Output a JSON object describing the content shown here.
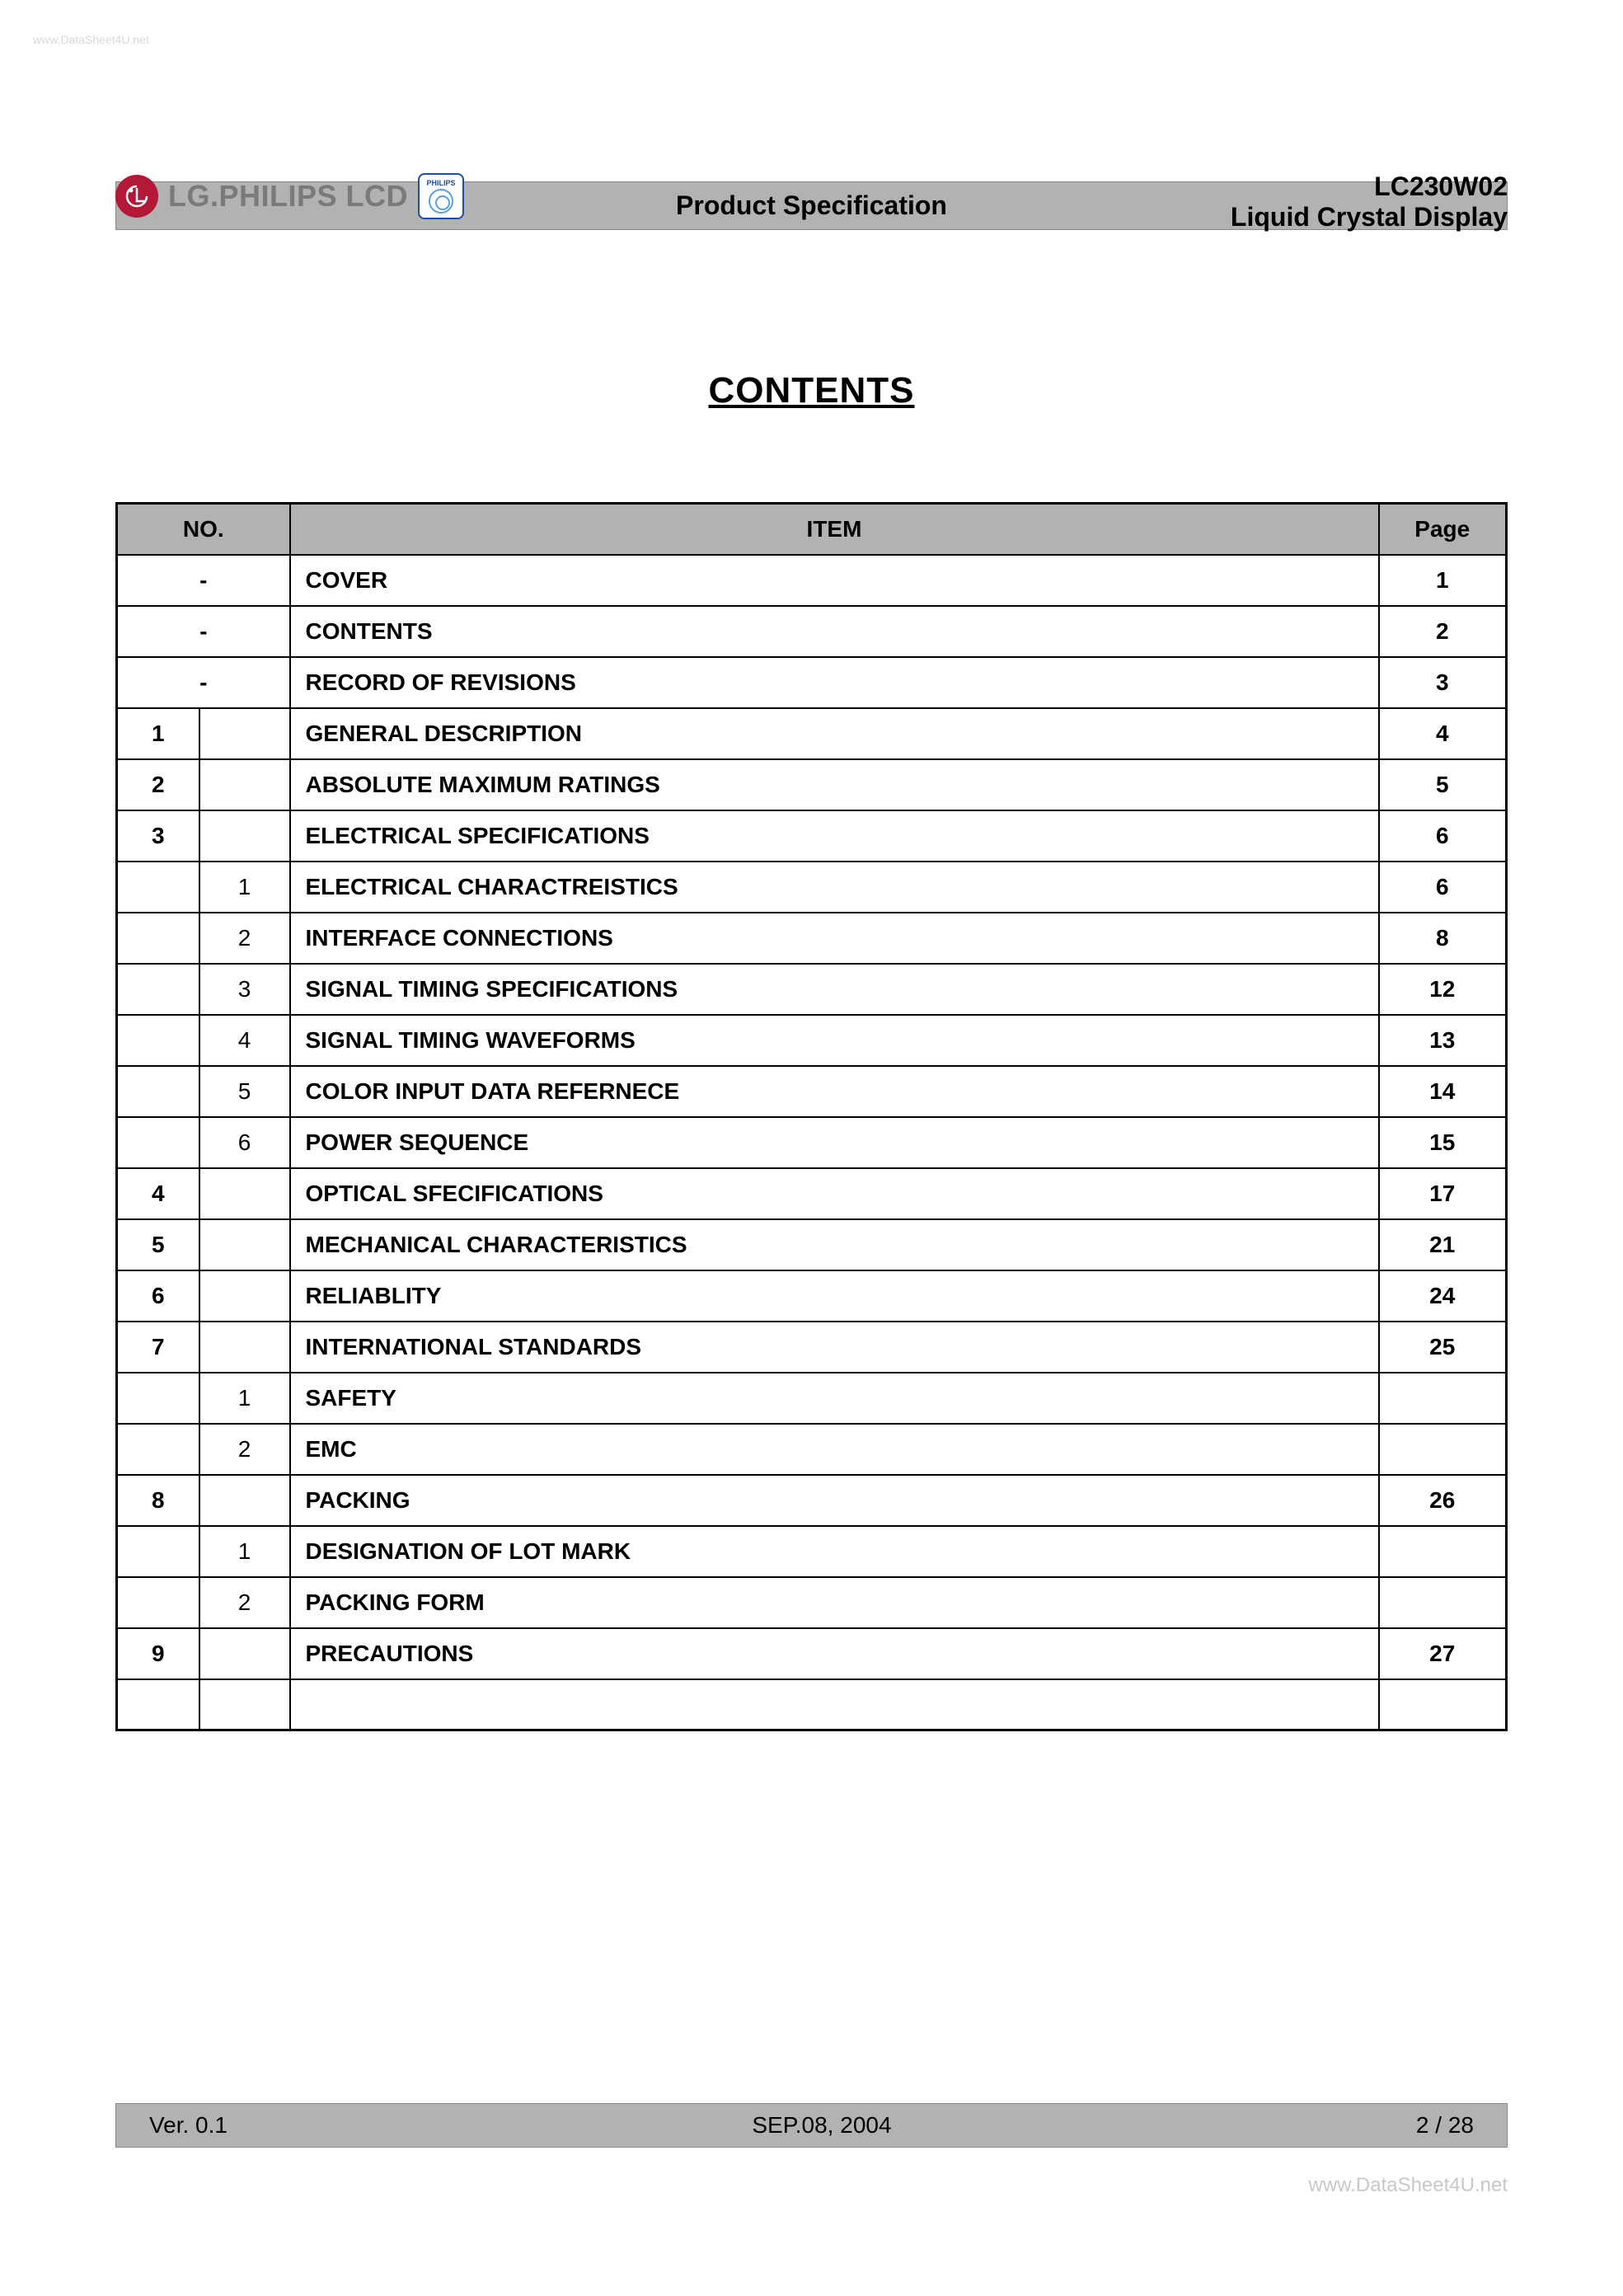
{
  "watermark_top": "www.DataSheet4U.net",
  "header": {
    "logo_text": "LG.PHILIPS LCD",
    "philips_label": "PHILIPS",
    "model": "LC230W02",
    "product": "Liquid Crystal Display",
    "banner": "Product Specification"
  },
  "title": "CONTENTS",
  "table": {
    "columns": {
      "no": "NO.",
      "item": "ITEM",
      "page": "Page"
    },
    "rows": [
      {
        "no1": "",
        "no2": "",
        "no_merged": "-",
        "item": "COVER",
        "page": "1"
      },
      {
        "no1": "",
        "no2": "",
        "no_merged": "-",
        "item": "CONTENTS",
        "page": "2"
      },
      {
        "no1": "",
        "no2": "",
        "no_merged": "-",
        "item": "RECORD OF REVISIONS",
        "page": "3"
      },
      {
        "no1": "1",
        "no2": "",
        "item": "GENERAL DESCRIPTION",
        "page": "4"
      },
      {
        "no1": "2",
        "no2": "",
        "item": "ABSOLUTE MAXIMUM RATINGS",
        "page": "5"
      },
      {
        "no1": "3",
        "no2": "",
        "item": "ELECTRICAL SPECIFICATIONS",
        "page": "6"
      },
      {
        "no1": "",
        "no2": "1",
        "item": "ELECTRICAL CHARACTREISTICS",
        "page": "6"
      },
      {
        "no1": "",
        "no2": "2",
        "item": "INTERFACE CONNECTIONS",
        "page": "8"
      },
      {
        "no1": "",
        "no2": "3",
        "item": "SIGNAL TIMING SPECIFICATIONS",
        "page": "12"
      },
      {
        "no1": "",
        "no2": "4",
        "item": "SIGNAL TIMING WAVEFORMS",
        "page": "13"
      },
      {
        "no1": "",
        "no2": "5",
        "item": "COLOR INPUT DATA REFERNECE",
        "page": "14"
      },
      {
        "no1": "",
        "no2": "6",
        "item": "POWER SEQUENCE",
        "page": "15"
      },
      {
        "no1": "4",
        "no2": "",
        "item": "OPTICAL SFECIFICATIONS",
        "page": "17"
      },
      {
        "no1": "5",
        "no2": "",
        "item": "MECHANICAL CHARACTERISTICS",
        "page": "21"
      },
      {
        "no1": "6",
        "no2": "",
        "item": "RELIABLITY",
        "page": "24"
      },
      {
        "no1": "7",
        "no2": "",
        "item": "INTERNATIONAL STANDARDS",
        "page": "25"
      },
      {
        "no1": "",
        "no2": "1",
        "item": "SAFETY",
        "page": ""
      },
      {
        "no1": "",
        "no2": "2",
        "item": "EMC",
        "page": ""
      },
      {
        "no1": "8",
        "no2": "",
        "item": "PACKING",
        "page": "26"
      },
      {
        "no1": "",
        "no2": "1",
        "item": "DESIGNATION OF LOT MARK",
        "page": ""
      },
      {
        "no1": "",
        "no2": "2",
        "item": "PACKING FORM",
        "page": ""
      },
      {
        "no1": "9",
        "no2": "",
        "item": "PRECAUTIONS",
        "page": "27"
      },
      {
        "no1": "",
        "no2": "",
        "item": "",
        "page": ""
      }
    ]
  },
  "footer": {
    "version": "Ver. 0.1",
    "date": "SEP.08, 2004",
    "page": "2 / 28"
  },
  "watermark_bottom": "www.DataSheet4U.net"
}
